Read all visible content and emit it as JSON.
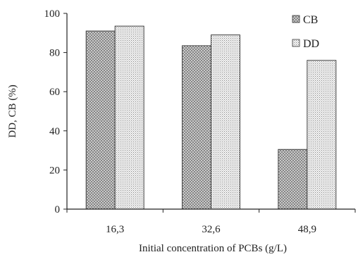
{
  "chart_data": {
    "type": "bar",
    "title": "",
    "xlabel": "Initial concentration of PCBs (g/L)",
    "ylabel": "DD, CB (%)",
    "categories": [
      "16,3",
      "32,6",
      "48,9"
    ],
    "series": [
      {
        "name": "CB",
        "values": [
          91,
          83.5,
          30.5
        ],
        "pattern": "cross-hatch"
      },
      {
        "name": "DD",
        "values": [
          93.5,
          89,
          76
        ],
        "pattern": "dots"
      }
    ],
    "ylim": [
      0,
      100
    ],
    "yticks": [
      0,
      20,
      40,
      60,
      80,
      100
    ],
    "legend_position": "top-right",
    "grid": false
  }
}
